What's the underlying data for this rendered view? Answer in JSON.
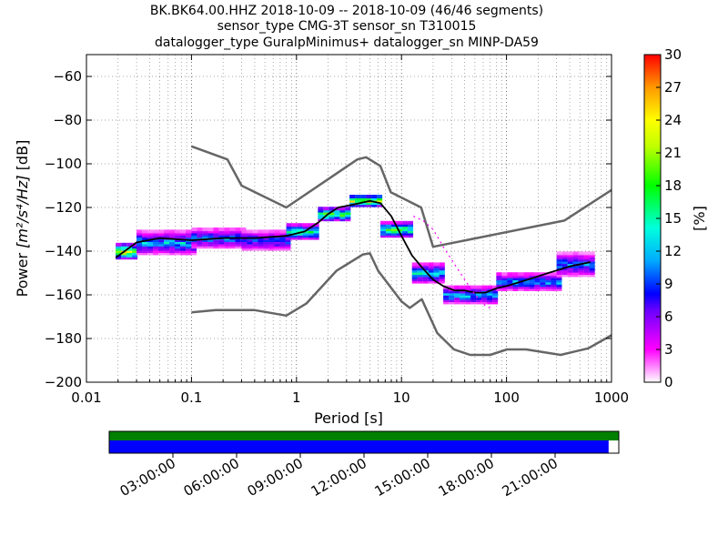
{
  "title": {
    "line1": "BK.BK64.00.HHZ   2018-10-09 -- 2018-10-09  (46/46 segments)",
    "line2": "sensor_type CMG-3T sensor_sn T310015",
    "line3": "datalogger_type GuralpMinimus+ datalogger_sn MINP-DA59"
  },
  "chart_data": [
    {
      "type": "heatmap",
      "xlabel": "Period [s]",
      "ylabel_prefix": "Power ",
      "ylabel_units": "[m²/s⁴/Hz]",
      "ylabel_suffix": " [dB]",
      "xscale": "log",
      "xlim": [
        0.01,
        1000
      ],
      "ylim": [
        -200,
        -50
      ],
      "xticks": [
        {
          "v": 0.01,
          "label": "0.01"
        },
        {
          "v": 0.1,
          "label": "0.1"
        },
        {
          "v": 1,
          "label": "1"
        },
        {
          "v": 10,
          "label": "10"
        },
        {
          "v": 100,
          "label": "100"
        },
        {
          "v": 1000,
          "label": "1000"
        }
      ],
      "yticks": [
        {
          "v": -60,
          "label": "−60"
        },
        {
          "v": -80,
          "label": "−80"
        },
        {
          "v": -100,
          "label": "−100"
        },
        {
          "v": -120,
          "label": "−120"
        },
        {
          "v": -140,
          "label": "−140"
        },
        {
          "v": -160,
          "label": "−160"
        },
        {
          "v": -180,
          "label": "−180"
        },
        {
          "v": -200,
          "label": "−200"
        }
      ],
      "grid": true,
      "colorbar": {
        "label": "[%]",
        "range": [
          0,
          30
        ],
        "ticks": [
          {
            "v": 30,
            "label": "30"
          },
          {
            "v": 27,
            "label": "27"
          },
          {
            "v": 24,
            "label": "24"
          },
          {
            "v": 21,
            "label": "21"
          },
          {
            "v": 18,
            "label": "18"
          },
          {
            "v": 15,
            "label": "15"
          },
          {
            "v": 12,
            "label": "12"
          },
          {
            "v": 9,
            "label": "9"
          },
          {
            "v": 6,
            "label": "6"
          },
          {
            "v": 3,
            "label": "3"
          },
          {
            "v": 0,
            "label": "0"
          }
        ]
      },
      "series": [
        {
          "name": "new_high_noise_model",
          "color": "#666666",
          "points": [
            [
              0.1,
              -92
            ],
            [
              0.22,
              -98
            ],
            [
              0.3,
              -110
            ],
            [
              0.8,
              -120
            ],
            [
              3.8,
              -98
            ],
            [
              4.6,
              -97
            ],
            [
              6.3,
              -101
            ],
            [
              7.9,
              -113
            ],
            [
              15.4,
              -120
            ],
            [
              20,
              -138
            ],
            [
              354.8,
              -126
            ],
            [
              1000,
              -112
            ]
          ]
        },
        {
          "name": "new_low_noise_model",
          "color": "#666666",
          "points": [
            [
              0.1,
              -168
            ],
            [
              0.17,
              -167
            ],
            [
              0.4,
              -167
            ],
            [
              0.8,
              -169.5
            ],
            [
              1.24,
              -164
            ],
            [
              2.4,
              -149
            ],
            [
              4.3,
              -141.5
            ],
            [
              5,
              -141
            ],
            [
              6,
              -149
            ],
            [
              10,
              -163
            ],
            [
              12,
              -166
            ],
            [
              15.6,
              -162
            ],
            [
              21.9,
              -177.5
            ],
            [
              31.6,
              -185
            ],
            [
              45,
              -187.5
            ],
            [
              70,
              -187.5
            ],
            [
              101,
              -185
            ],
            [
              154,
              -185
            ],
            [
              328,
              -187.5
            ],
            [
              600,
              -184.5
            ],
            [
              1000,
              -178.5
            ]
          ]
        },
        {
          "name": "mode",
          "color": "#000000",
          "points": [
            [
              0.019,
              -143
            ],
            [
              0.03,
              -136
            ],
            [
              0.05,
              -134
            ],
            [
              0.1,
              -135
            ],
            [
              0.2,
              -134
            ],
            [
              0.4,
              -134
            ],
            [
              0.8,
              -133
            ],
            [
              1.2,
              -131
            ],
            [
              1.6,
              -127
            ],
            [
              2.0,
              -123
            ],
            [
              2.5,
              -120
            ],
            [
              3.2,
              -119
            ],
            [
              4.0,
              -118
            ],
            [
              5.0,
              -117
            ],
            [
              6.3,
              -118
            ],
            [
              8.0,
              -124
            ],
            [
              10,
              -133
            ],
            [
              12.6,
              -142
            ],
            [
              16,
              -148
            ],
            [
              20,
              -153
            ],
            [
              25,
              -156
            ],
            [
              32,
              -158
            ],
            [
              40,
              -158
            ],
            [
              50,
              -159
            ],
            [
              63,
              -159
            ],
            [
              80,
              -157
            ],
            [
              100,
              -156
            ],
            [
              160,
              -153
            ],
            [
              250,
              -150
            ],
            [
              400,
              -147
            ],
            [
              630,
              -145
            ]
          ]
        },
        {
          "name": "secondary",
          "color": "#ff00ff",
          "points": [
            [
              13,
              -124
            ],
            [
              16,
              -126
            ],
            [
              20,
              -130
            ],
            [
              25,
              -138
            ],
            [
              32,
              -146
            ],
            [
              40,
              -153
            ],
            [
              50,
              -160
            ],
            [
              63,
              -165
            ],
            [
              70,
              -166
            ]
          ]
        }
      ],
      "density_bands": [
        {
          "x": [
            0.019,
            0.03
          ],
          "center": -140,
          "half": 3,
          "peak": 26
        },
        {
          "x": [
            0.03,
            0.1
          ],
          "center": -136,
          "half": 5,
          "peak": 14
        },
        {
          "x": [
            0.1,
            0.3
          ],
          "center": -134,
          "half": 4,
          "peak": 12
        },
        {
          "x": [
            0.3,
            0.8
          ],
          "center": -135,
          "half": 4,
          "peak": 11
        },
        {
          "x": [
            0.8,
            1.6
          ],
          "center": -131,
          "half": 3,
          "peak": 18
        },
        {
          "x": [
            1.6,
            3.2
          ],
          "center": -123,
          "half": 2.5,
          "peak": 22
        },
        {
          "x": [
            3.2,
            6.3
          ],
          "center": -117,
          "half": 2,
          "peak": 26
        },
        {
          "x": [
            6.3,
            12.6
          ],
          "center": -130,
          "half": 3,
          "peak": 20
        },
        {
          "x": [
            12.6,
            25
          ],
          "center": -150,
          "half": 4,
          "peak": 15
        },
        {
          "x": [
            25,
            80
          ],
          "center": -160,
          "half": 3.5,
          "peak": 14
        },
        {
          "x": [
            80,
            300
          ],
          "center": -154,
          "half": 3.5,
          "peak": 13
        },
        {
          "x": [
            300,
            630
          ],
          "center": -146,
          "half": 5,
          "peak": 12
        }
      ]
    },
    {
      "type": "timeline",
      "coverage_color": "#0000ff",
      "coverage_fraction": 0.98,
      "data_bar_color": "#008000",
      "time_ticks": [
        {
          "v": 3,
          "label": "03:00:00"
        },
        {
          "v": 6,
          "label": "06:00:00"
        },
        {
          "v": 9,
          "label": "09:00:00"
        },
        {
          "v": 12,
          "label": "12:00:00"
        },
        {
          "v": 15,
          "label": "15:00:00"
        },
        {
          "v": 18,
          "label": "18:00:00"
        },
        {
          "v": 21,
          "label": "21:00:00"
        }
      ],
      "range_hours": [
        0,
        24
      ]
    }
  ]
}
